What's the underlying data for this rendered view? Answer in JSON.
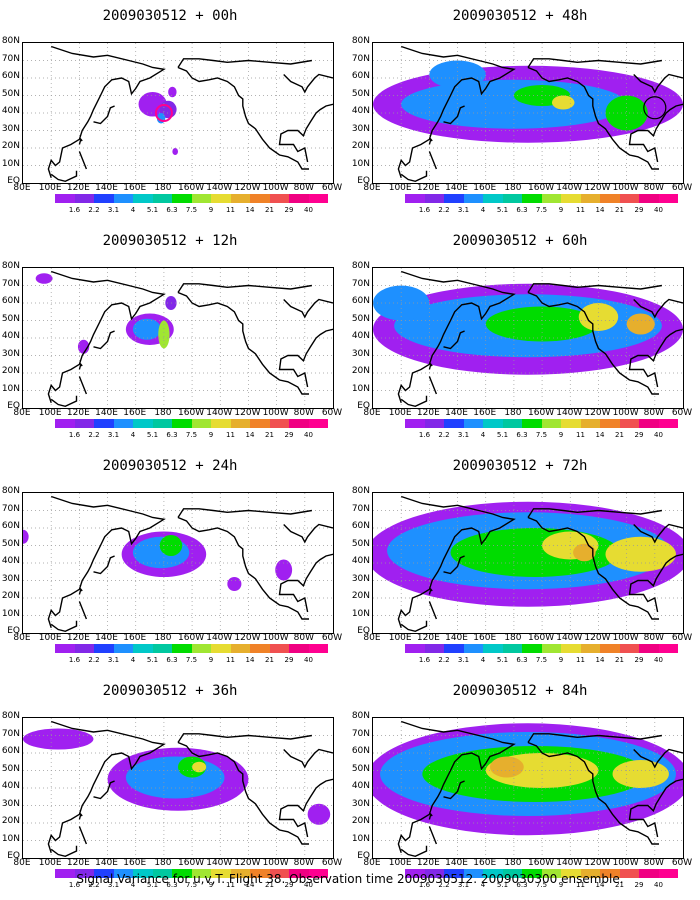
{
  "colors": [
    "#a020f0",
    "#8228e8",
    "#2040ff",
    "#1e90ff",
    "#00c8c8",
    "#00c8a0",
    "#00dc00",
    "#a0e632",
    "#e6dc32",
    "#e6af2d",
    "#f08228",
    "#f05050",
    "#f00082",
    "#ff0090"
  ],
  "colorbar_labels": [
    "1.6",
    "2.2",
    "3.1",
    "4",
    "5.1",
    "6.3",
    "7.5",
    "9",
    "11",
    "14",
    "21",
    "29",
    "40"
  ],
  "lat_labels": [
    "80N",
    "70N",
    "60N",
    "50N",
    "40N",
    "30N",
    "20N",
    "10N",
    "EQ"
  ],
  "lon_labels": [
    "80E",
    "100E",
    "120E",
    "140E",
    "160E",
    "180",
    "160W",
    "140W",
    "120W",
    "100W",
    "80W",
    "60W"
  ],
  "panels": [
    {
      "title": "2009030512 + 00h",
      "lead_hours": 0
    },
    {
      "title": "2009030512 + 48h",
      "lead_hours": 48
    },
    {
      "title": "2009030512 + 12h",
      "lead_hours": 12
    },
    {
      "title": "2009030512 + 60h",
      "lead_hours": 60
    },
    {
      "title": "2009030512 + 24h",
      "lead_hours": 24
    },
    {
      "title": "2009030512 + 72h",
      "lead_hours": 72
    },
    {
      "title": "2009030512 + 36h",
      "lead_hours": 36
    },
    {
      "title": "2009030512 + 84h",
      "lead_hours": 84
    }
  ],
  "caption": "Signal Variance for u,v,T. Flight 38. Observation time 2009030512. 2009030300 ensemble."
}
